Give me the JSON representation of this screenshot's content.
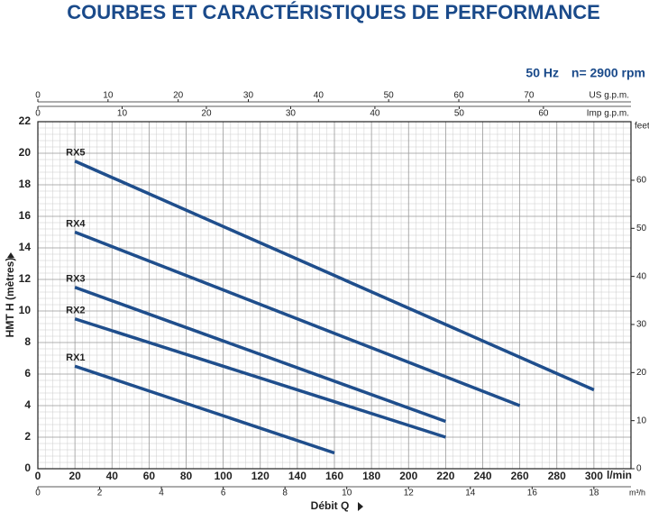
{
  "chart_data": {
    "type": "line",
    "title": "COURBES ET CARACTÉRISTIQUES DE PERFORMANCE",
    "frequency": "50 Hz",
    "speed": "n= 2900 rpm",
    "ylabel": "HMT H (mètres)",
    "xlabel": "Débit Q",
    "x_unit": "l/min",
    "xlim": [
      0,
      320
    ],
    "xticks": [
      0,
      20,
      40,
      60,
      80,
      100,
      120,
      140,
      160,
      180,
      200,
      220,
      240,
      260,
      280,
      300
    ],
    "ylim": [
      0,
      22
    ],
    "yticks": [
      0,
      2,
      4,
      6,
      8,
      10,
      12,
      14,
      16,
      18,
      20,
      22
    ],
    "grid": true,
    "x2_axes": [
      {
        "label": "US g.p.m.",
        "lim": [
          0,
          84.54
        ],
        "ticks": [
          0,
          10,
          20,
          30,
          40,
          50,
          60,
          70
        ]
      },
      {
        "label": "Imp g.p.m.",
        "lim": [
          0,
          70.39
        ],
        "ticks": [
          0,
          10,
          20,
          30,
          40,
          50,
          60
        ]
      },
      {
        "label": "m³/h",
        "lim": [
          0,
          19.2
        ],
        "ticks": [
          0,
          2,
          4,
          6,
          8,
          10,
          12,
          14,
          16,
          18
        ]
      }
    ],
    "y2label": "feet",
    "y2lim": [
      0,
      72.18
    ],
    "y2ticks": [
      0,
      10,
      20,
      30,
      40,
      50,
      60
    ],
    "series": [
      {
        "name": "RX5",
        "color": "#1f4e8c",
        "x": [
          20,
          300
        ],
        "values": [
          19.5,
          5
        ]
      },
      {
        "name": "RX4",
        "color": "#1f4e8c",
        "x": [
          20,
          260
        ],
        "values": [
          15,
          4
        ]
      },
      {
        "name": "RX3",
        "color": "#1f4e8c",
        "x": [
          20,
          220
        ],
        "values": [
          11.5,
          3
        ]
      },
      {
        "name": "RX2",
        "color": "#1f4e8c",
        "x": [
          20,
          220
        ],
        "values": [
          9.5,
          2
        ]
      },
      {
        "name": "RX1",
        "color": "#1f4e8c",
        "x": [
          20,
          160
        ],
        "values": [
          6.5,
          1
        ]
      }
    ]
  }
}
